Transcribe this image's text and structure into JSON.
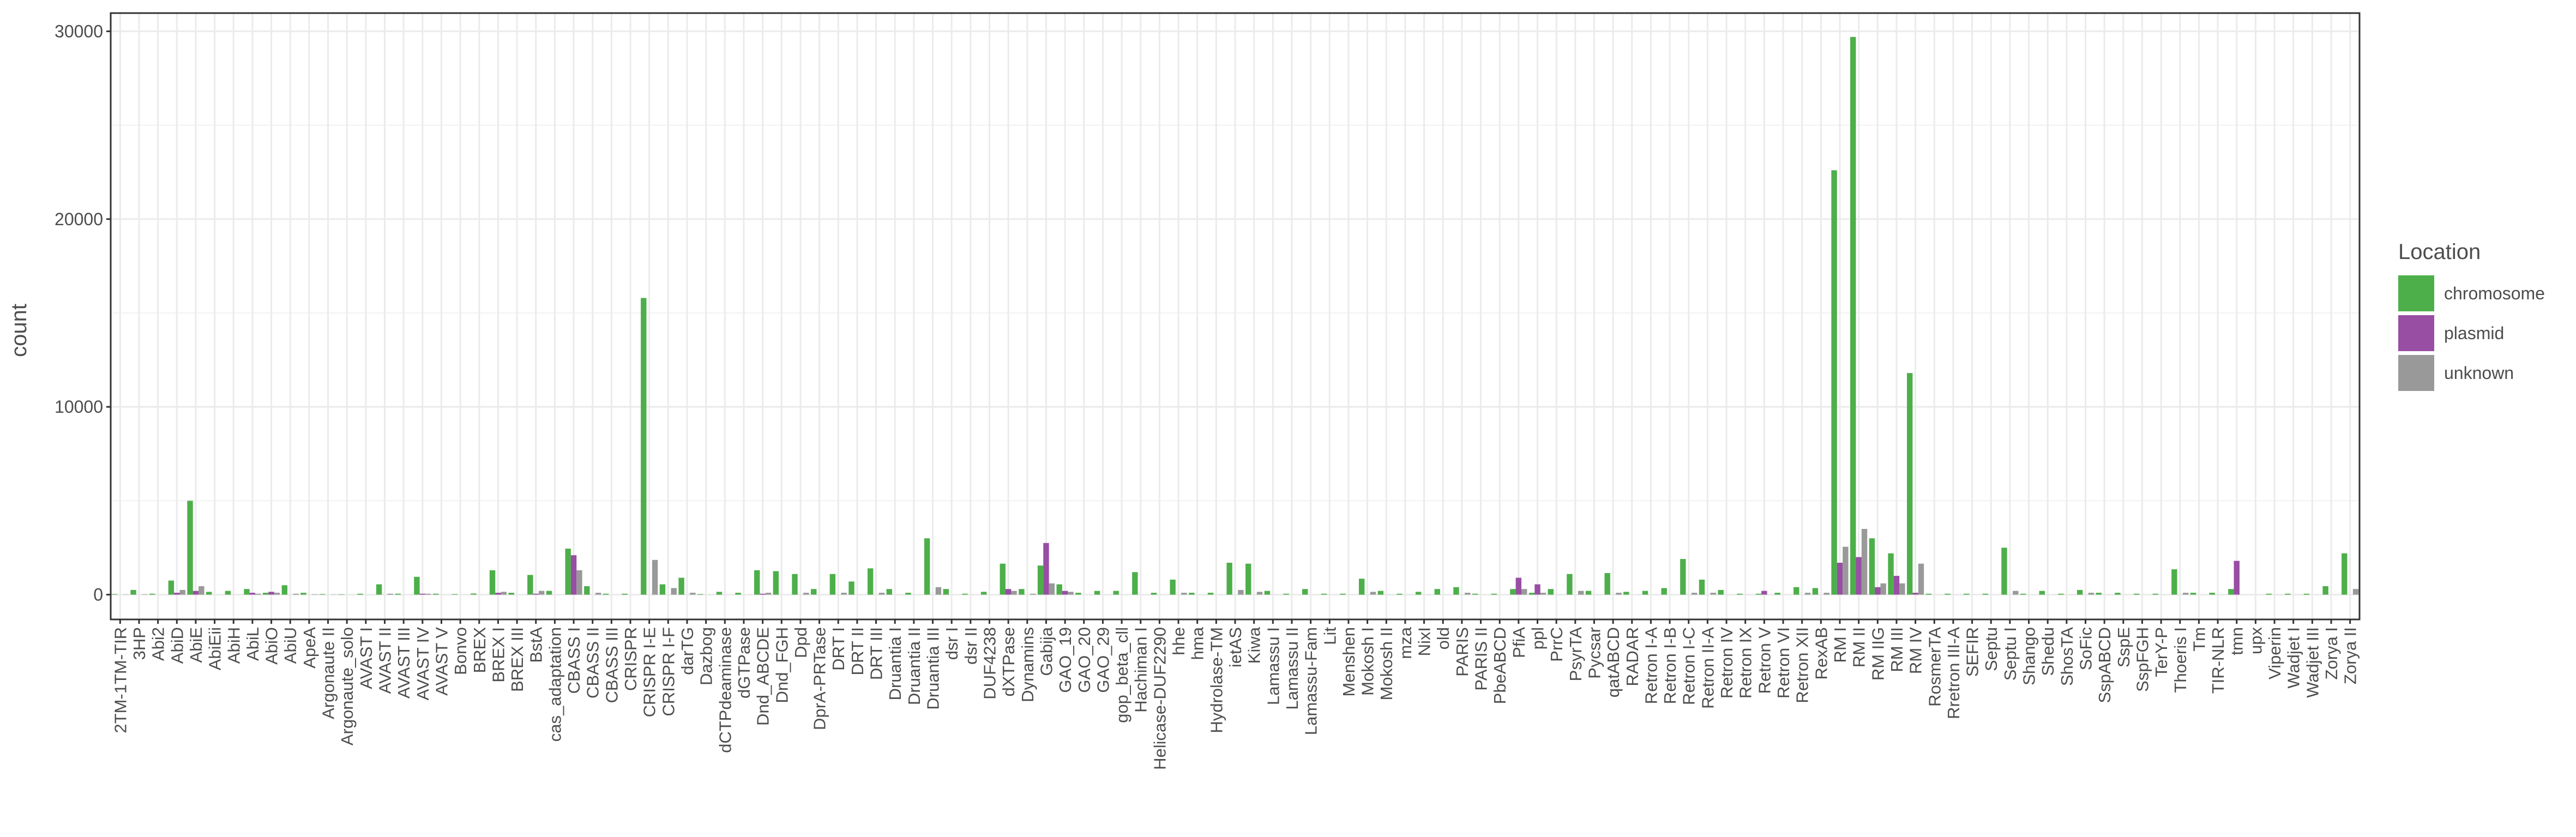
{
  "chart_data": {
    "type": "bar",
    "y_label": "count",
    "legend_title": "Location",
    "legend_position": "right",
    "grid": true,
    "ylim": [
      -1320,
      30970
    ],
    "yticks": [
      0,
      10000,
      20000,
      30000
    ],
    "categories": [
      "2TM-1TM-TIR",
      "3HP",
      "Abi2",
      "AbiD",
      "AbiE",
      "AbiEii",
      "AbiH",
      "AbiL",
      "AbiO",
      "AbiU",
      "ApeA",
      "Argonaute II",
      "Argonaute_solo",
      "AVAST I",
      "AVAST II",
      "AVAST III",
      "AVAST IV",
      "AVAST V",
      "Bonvo",
      "BREX",
      "BREX I",
      "BREX III",
      "BstA",
      "cas_adaptation",
      "CBASS I",
      "CBASS II",
      "CBASS III",
      "CRISPR",
      "CRISPR I-E",
      "CRISPR I-F",
      "darTG",
      "Dazbog",
      "dCTPdeaminase",
      "dGTPase",
      "Dnd_ABCDE",
      "Dnd_FGH",
      "Dpd",
      "DprA-PRTase",
      "DRT I",
      "DRT II",
      "DRT III",
      "Druantia I",
      "Druantia II",
      "Druantia III",
      "dsr I",
      "dsr II",
      "DUF4238",
      "dXTPase",
      "Dynamins",
      "Gabija",
      "GAO_19",
      "GAO_20",
      "GAO_29",
      "gop_beta_cll",
      "Hachiman I",
      "Helicase-DUF2290",
      "hhe",
      "hma",
      "Hydrolase-TM",
      "ietAS",
      "Kiwa",
      "Lamassu I",
      "Lamassu II",
      "Lamassu-Fam",
      "Lit",
      "Menshen",
      "Mokosh I",
      "Mokosh II",
      "mza",
      "NixI",
      "old",
      "PARIS",
      "PARIS II",
      "PbeABCD",
      "PfiA",
      "ppl",
      "PrrC",
      "PsyrTA",
      "Pycsar",
      "qatABCD",
      "RADAR",
      "Retron I-A",
      "Retron I-B",
      "Retron I-C",
      "Retron II-A",
      "Retron IV",
      "Retron IX",
      "Retron V",
      "Retron VI",
      "Retron XII",
      "RexAB",
      "RM I",
      "RM II",
      "RM IIG",
      "RM III",
      "RM IV",
      "RosmerTA",
      "Rretron III-A",
      "SEFIR",
      "Septu",
      "Septu I",
      "Shango",
      "Shedu",
      "ShosTA",
      "SoFic",
      "SspABCD",
      "SspE",
      "SspFGH",
      "TerY-P",
      "Thoeris I",
      "Tm",
      "TIR-NLR",
      "tmn",
      "upx",
      "Viperin",
      "Wadjet I",
      "Wadjet III",
      "Zorya I",
      "Zorya II"
    ],
    "series": [
      {
        "name": "chromosome",
        "color": "#4daf4a",
        "values": [
          30,
          250,
          50,
          750,
          5000,
          150,
          200,
          300,
          100,
          500,
          100,
          30,
          20,
          50,
          550,
          50,
          950,
          50,
          30,
          60,
          1300,
          100,
          1050,
          200,
          2450,
          450,
          50,
          50,
          15800,
          550,
          900,
          30,
          150,
          100,
          1300,
          1250,
          1100,
          300,
          1100,
          700,
          1400,
          300,
          100,
          3000,
          300,
          50,
          150,
          1650,
          300,
          1550,
          550,
          100,
          200,
          200,
          1200,
          100,
          800,
          100,
          100,
          1700,
          1650,
          200,
          50,
          300,
          50,
          50,
          850,
          200,
          50,
          150,
          300,
          400,
          50,
          50,
          300,
          100,
          300,
          1100,
          200,
          1150,
          150,
          200,
          350,
          1900,
          800,
          250,
          50,
          50,
          100,
          400,
          350,
          22600,
          29700,
          3000,
          2200,
          11800,
          50,
          50,
          50,
          50,
          2500,
          50,
          200,
          50,
          250,
          100,
          100,
          50,
          50,
          1350,
          100,
          100,
          300,
          0,
          50,
          50,
          50,
          450,
          2200
        ]
      },
      {
        "name": "plasmid",
        "color": "#984ea3",
        "values": [
          0,
          0,
          0,
          100,
          200,
          0,
          0,
          100,
          150,
          0,
          0,
          0,
          0,
          0,
          0,
          0,
          50,
          0,
          0,
          0,
          100,
          0,
          50,
          0,
          2100,
          0,
          0,
          0,
          0,
          0,
          0,
          0,
          0,
          0,
          50,
          0,
          0,
          0,
          0,
          0,
          0,
          0,
          0,
          0,
          0,
          0,
          0,
          300,
          0,
          2750,
          200,
          0,
          0,
          0,
          0,
          0,
          0,
          0,
          0,
          0,
          0,
          0,
          0,
          0,
          0,
          0,
          0,
          0,
          0,
          0,
          0,
          0,
          0,
          0,
          900,
          550,
          0,
          0,
          0,
          0,
          0,
          0,
          0,
          0,
          0,
          0,
          0,
          200,
          0,
          0,
          0,
          1700,
          2000,
          400,
          1000,
          100,
          0,
          0,
          0,
          0,
          0,
          0,
          0,
          0,
          0,
          0,
          0,
          0,
          0,
          0,
          0,
          0,
          1800,
          0,
          0,
          0,
          0,
          0,
          0
        ]
      },
      {
        "name": "unknown",
        "color": "#999999",
        "values": [
          10,
          20,
          0,
          250,
          450,
          0,
          0,
          50,
          100,
          50,
          20,
          10,
          0,
          0,
          50,
          0,
          50,
          0,
          0,
          0,
          150,
          0,
          200,
          0,
          1300,
          100,
          0,
          0,
          1850,
          350,
          100,
          0,
          0,
          0,
          100,
          0,
          100,
          0,
          100,
          0,
          100,
          0,
          0,
          400,
          0,
          0,
          0,
          200,
          50,
          600,
          150,
          0,
          0,
          0,
          0,
          0,
          100,
          0,
          0,
          250,
          150,
          0,
          0,
          0,
          0,
          0,
          150,
          0,
          0,
          0,
          0,
          100,
          0,
          0,
          300,
          100,
          0,
          200,
          0,
          100,
          0,
          0,
          0,
          100,
          100,
          0,
          0,
          0,
          0,
          100,
          100,
          2550,
          3500,
          600,
          600,
          1650,
          0,
          0,
          0,
          0,
          200,
          0,
          0,
          0,
          100,
          0,
          0,
          0,
          0,
          100,
          0,
          0,
          0,
          0,
          0,
          0,
          0,
          0,
          300
        ]
      }
    ]
  }
}
